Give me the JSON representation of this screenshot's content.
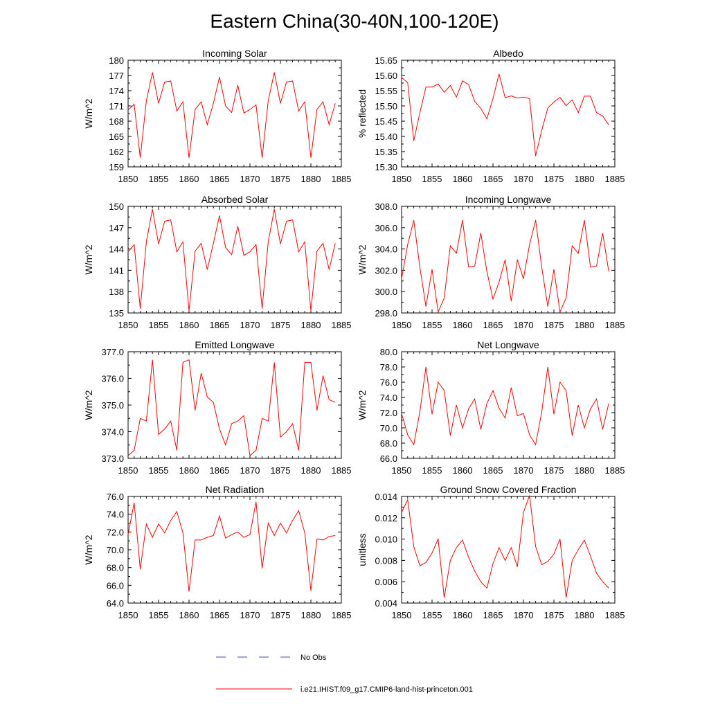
{
  "figure_title": "Eastern China(30-40N,100-120E)",
  "legend": {
    "entries": [
      {
        "label": "No Obs",
        "color": "#3b4ba8",
        "dash": true
      },
      {
        "label": "i.e21.IHIST.f09_g17.CMIP6-land-hist-princeton.001",
        "color": "#ff0000",
        "dash": false
      }
    ]
  },
  "chart_data": [
    {
      "type": "line",
      "title": "Incoming Solar",
      "ylabel": "W/m^2",
      "xlim": [
        1850,
        1885
      ],
      "ylim": [
        159,
        180
      ],
      "yticks": [
        "159",
        "162",
        "165",
        "168",
        "171",
        "174",
        "177",
        "180"
      ],
      "xticks": [
        "1850",
        "1855",
        "1860",
        "1865",
        "1870",
        "1875",
        "1880",
        "1885"
      ],
      "x": [
        1850,
        1851,
        1852,
        1853,
        1854,
        1855,
        1856,
        1857,
        1858,
        1859,
        1860,
        1861,
        1862,
        1863,
        1864,
        1865,
        1866,
        1867,
        1868,
        1869,
        1870,
        1871,
        1872,
        1873,
        1874,
        1875,
        1876,
        1877,
        1878,
        1879,
        1880,
        1881,
        1882,
        1883,
        1884
      ],
      "series": [
        {
          "color": "#ff0000",
          "values": [
            170.2,
            171.3,
            160.8,
            172.0,
            177.6,
            171.5,
            175.7,
            175.9,
            170.0,
            171.8,
            160.8,
            170.3,
            171.8,
            167.3,
            171.5,
            176.7,
            171.0,
            169.7,
            175.1,
            169.6,
            170.3,
            171.2,
            160.8,
            172.0,
            177.6,
            171.5,
            175.7,
            175.9,
            170.0,
            171.8,
            160.8,
            170.3,
            171.8,
            167.3,
            171.5
          ]
        }
      ]
    },
    {
      "type": "line",
      "title": "Albedo",
      "ylabel": "% reflected",
      "xlim": [
        1850,
        1885
      ],
      "ylim": [
        15.3,
        15.65
      ],
      "yticks": [
        "15.30",
        "15.35",
        "15.40",
        "15.45",
        "15.50",
        "15.55",
        "15.60",
        "15.65"
      ],
      "xticks": [
        "1850",
        "1855",
        "1860",
        "1865",
        "1870",
        "1875",
        "1880",
        "1885"
      ],
      "x": [
        1850,
        1851,
        1852,
        1853,
        1854,
        1855,
        1856,
        1857,
        1858,
        1859,
        1860,
        1861,
        1862,
        1863,
        1864,
        1865,
        1866,
        1867,
        1868,
        1869,
        1870,
        1871,
        1872,
        1873,
        1874,
        1875,
        1876,
        1877,
        1878,
        1879,
        1880,
        1881,
        1882,
        1883,
        1884
      ],
      "series": [
        {
          "color": "#ff0000",
          "values": [
            15.593,
            15.577,
            15.385,
            15.478,
            15.562,
            15.562,
            15.572,
            15.545,
            15.567,
            15.529,
            15.582,
            15.57,
            15.515,
            15.492,
            15.458,
            15.524,
            15.605,
            15.527,
            15.533,
            15.526,
            15.529,
            15.524,
            15.336,
            15.42,
            15.493,
            15.513,
            15.528,
            15.501,
            15.52,
            15.478,
            15.532,
            15.532,
            15.478,
            15.467,
            15.438
          ]
        }
      ]
    },
    {
      "type": "line",
      "title": "Absorbed Solar",
      "ylabel": "W/m^2",
      "xlim": [
        1850,
        1885
      ],
      "ylim": [
        135,
        150
      ],
      "yticks": [
        "135",
        "138",
        "141",
        "144",
        "147",
        "150"
      ],
      "xticks": [
        "1850",
        "1855",
        "1860",
        "1865",
        "1870",
        "1875",
        "1880",
        "1885"
      ],
      "x": [
        1850,
        1851,
        1852,
        1853,
        1854,
        1855,
        1856,
        1857,
        1858,
        1859,
        1860,
        1861,
        1862,
        1863,
        1864,
        1865,
        1866,
        1867,
        1868,
        1869,
        1870,
        1871,
        1872,
        1873,
        1874,
        1875,
        1876,
        1877,
        1878,
        1879,
        1880,
        1881,
        1882,
        1883,
        1884
      ],
      "series": [
        {
          "color": "#ff0000",
          "values": [
            143.6,
            144.6,
            135.6,
            145.0,
            149.6,
            144.7,
            147.9,
            148.1,
            143.6,
            145.0,
            135.3,
            143.7,
            144.8,
            141.1,
            144.8,
            148.7,
            144.2,
            143.2,
            147.2,
            143.1,
            143.6,
            144.6,
            135.6,
            145.0,
            149.6,
            144.7,
            147.9,
            148.1,
            143.6,
            145.0,
            135.3,
            143.7,
            144.8,
            141.1,
            144.8
          ]
        }
      ]
    },
    {
      "type": "line",
      "title": "Incoming Longwave",
      "ylabel": "W/m^2",
      "xlim": [
        1850,
        1885
      ],
      "ylim": [
        298.0,
        308.0
      ],
      "yticks": [
        "298.0",
        "300.0",
        "302.0",
        "304.0",
        "306.0",
        "308.0"
      ],
      "xticks": [
        "1850",
        "1855",
        "1860",
        "1865",
        "1870",
        "1875",
        "1880",
        "1885"
      ],
      "x": [
        1850,
        1851,
        1852,
        1853,
        1854,
        1855,
        1856,
        1857,
        1858,
        1859,
        1860,
        1861,
        1862,
        1863,
        1864,
        1865,
        1866,
        1867,
        1868,
        1869,
        1870,
        1871,
        1872,
        1873,
        1874,
        1875,
        1876,
        1877,
        1878,
        1879,
        1880,
        1881,
        1882,
        1883,
        1884
      ],
      "series": [
        {
          "color": "#ff0000",
          "values": [
            301.2,
            304.4,
            306.7,
            302.3,
            298.6,
            302.1,
            298.1,
            299.4,
            304.3,
            303.6,
            306.7,
            302.3,
            302.4,
            305.5,
            301.9,
            299.3,
            300.9,
            303.0,
            299.1,
            303.0,
            301.2,
            304.4,
            306.7,
            302.3,
            298.6,
            302.1,
            298.1,
            299.4,
            304.3,
            303.6,
            306.7,
            302.3,
            302.4,
            305.5,
            301.9
          ]
        }
      ]
    },
    {
      "type": "line",
      "title": "Emitted Longwave",
      "ylabel": "W/m^2",
      "xlim": [
        1850,
        1885
      ],
      "ylim": [
        373.0,
        377.0
      ],
      "yticks": [
        "373.0",
        "374.0",
        "375.0",
        "376.0",
        "377.0"
      ],
      "xticks": [
        "1850",
        "1855",
        "1860",
        "1865",
        "1870",
        "1875",
        "1880",
        "1885"
      ],
      "x": [
        1850,
        1851,
        1852,
        1853,
        1854,
        1855,
        1856,
        1857,
        1858,
        1859,
        1860,
        1861,
        1862,
        1863,
        1864,
        1865,
        1866,
        1867,
        1868,
        1869,
        1870,
        1871,
        1872,
        1873,
        1874,
        1875,
        1876,
        1877,
        1878,
        1879,
        1880,
        1881,
        1882,
        1883,
        1884
      ],
      "series": [
        {
          "color": "#ff0000",
          "values": [
            373.1,
            373.3,
            374.5,
            374.4,
            376.7,
            373.9,
            374.1,
            374.4,
            373.3,
            376.6,
            376.7,
            374.8,
            376.2,
            375.3,
            375.1,
            374.1,
            373.5,
            374.3,
            374.4,
            374.6,
            373.1,
            373.3,
            374.5,
            374.4,
            376.6,
            373.8,
            374.0,
            374.3,
            373.3,
            376.6,
            376.6,
            374.8,
            376.1,
            375.2,
            375.1
          ]
        }
      ]
    },
    {
      "type": "line",
      "title": "Net Longwave",
      "ylabel": "W/m^2",
      "xlim": [
        1850,
        1885
      ],
      "ylim": [
        66.0,
        80.0
      ],
      "yticks": [
        "66.0",
        "68.0",
        "70.0",
        "72.0",
        "74.0",
        "76.0",
        "78.0",
        "80.0"
      ],
      "xticks": [
        "1850",
        "1855",
        "1860",
        "1865",
        "1870",
        "1875",
        "1880",
        "1885"
      ],
      "x": [
        1850,
        1851,
        1852,
        1853,
        1854,
        1855,
        1856,
        1857,
        1858,
        1859,
        1860,
        1861,
        1862,
        1863,
        1864,
        1865,
        1866,
        1867,
        1868,
        1869,
        1870,
        1871,
        1872,
        1873,
        1874,
        1875,
        1876,
        1877,
        1878,
        1879,
        1880,
        1881,
        1882,
        1883,
        1884
      ],
      "series": [
        {
          "color": "#ff0000",
          "values": [
            71.9,
            69.1,
            67.8,
            72.1,
            78.0,
            71.8,
            76.0,
            74.9,
            69.0,
            73.0,
            70.0,
            72.5,
            73.8,
            69.8,
            73.2,
            74.9,
            72.6,
            71.3,
            75.3,
            71.6,
            71.9,
            69.1,
            67.8,
            72.1,
            78.0,
            71.8,
            76.0,
            74.9,
            69.0,
            73.0,
            70.0,
            72.5,
            73.8,
            69.8,
            73.2
          ]
        }
      ]
    },
    {
      "type": "line",
      "title": "Net Radiation",
      "ylabel": "W/m^2",
      "xlim": [
        1850,
        1885
      ],
      "ylim": [
        64.0,
        76.0
      ],
      "yticks": [
        "64.0",
        "66.0",
        "68.0",
        "70.0",
        "72.0",
        "74.0",
        "76.0"
      ],
      "xticks": [
        "1850",
        "1855",
        "1860",
        "1865",
        "1870",
        "1875",
        "1880",
        "1885"
      ],
      "x": [
        1850,
        1851,
        1852,
        1853,
        1854,
        1855,
        1856,
        1857,
        1858,
        1859,
        1860,
        1861,
        1862,
        1863,
        1864,
        1865,
        1866,
        1867,
        1868,
        1869,
        1870,
        1871,
        1872,
        1873,
        1874,
        1875,
        1876,
        1877,
        1878,
        1879,
        1880,
        1881,
        1882,
        1883,
        1884
      ],
      "series": [
        {
          "color": "#ff0000",
          "values": [
            71.7,
            75.3,
            67.8,
            72.9,
            71.4,
            72.9,
            71.9,
            73.3,
            74.3,
            71.9,
            65.3,
            71.1,
            71.1,
            71.4,
            71.6,
            73.8,
            71.3,
            71.7,
            72.0,
            71.4,
            71.7,
            75.4,
            67.9,
            73.0,
            71.6,
            73.0,
            71.9,
            73.3,
            74.4,
            71.9,
            65.4,
            71.2,
            71.1,
            71.5,
            71.6
          ]
        }
      ]
    },
    {
      "type": "line",
      "title": "Ground Snow Covered Fraction",
      "ylabel": "unitless",
      "xlim": [
        1850,
        1885
      ],
      "ylim": [
        0.004,
        0.014
      ],
      "yticks": [
        "0.004",
        "0.006",
        "0.008",
        "0.010",
        "0.012",
        "0.014"
      ],
      "xticks": [
        "1850",
        "1855",
        "1860",
        "1865",
        "1870",
        "1875",
        "1880",
        "1885"
      ],
      "x": [
        1850,
        1851,
        1852,
        1853,
        1854,
        1855,
        1856,
        1857,
        1858,
        1859,
        1860,
        1861,
        1862,
        1863,
        1864,
        1865,
        1866,
        1867,
        1868,
        1869,
        1870,
        1871,
        1872,
        1873,
        1874,
        1875,
        1876,
        1877,
        1878,
        1879,
        1880,
        1881,
        1882,
        1883,
        1884
      ],
      "series": [
        {
          "color": "#ff0000",
          "values": [
            0.0125,
            0.0137,
            0.0093,
            0.0075,
            0.0078,
            0.0087,
            0.01,
            0.0045,
            0.008,
            0.0092,
            0.0099,
            0.0083,
            0.007,
            0.006,
            0.0054,
            0.0077,
            0.0092,
            0.008,
            0.0092,
            0.0074,
            0.0125,
            0.0141,
            0.0093,
            0.0076,
            0.0079,
            0.0086,
            0.01,
            0.0045,
            0.008,
            0.009,
            0.0099,
            0.0084,
            0.0068,
            0.006,
            0.0054
          ]
        }
      ]
    }
  ]
}
